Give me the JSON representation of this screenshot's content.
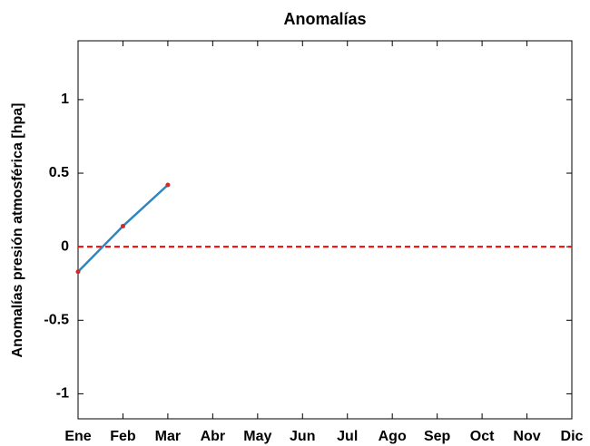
{
  "chart_data": {
    "type": "line",
    "title": "Anomalías",
    "y_label": "Anomalías presión atmosférica [hpa]",
    "categories": [
      "Ene",
      "Feb",
      "Mar",
      "Abr",
      "May",
      "Jun",
      "Jul",
      "Ago",
      "Sep",
      "Oct",
      "Nov",
      "Dic"
    ],
    "series": [
      {
        "color": "#2e86c1",
        "marker_color": "#d62728",
        "values": [
          -0.17,
          0.14,
          0.42,
          null,
          null,
          null,
          null,
          null,
          null,
          null,
          null,
          null
        ]
      }
    ],
    "reference_line": {
      "value": 0,
      "color": "#ff0000"
    },
    "ylim": [
      -1.17,
      1.4
    ],
    "yticks": [
      -1,
      -0.5,
      0,
      0.5,
      1
    ]
  }
}
